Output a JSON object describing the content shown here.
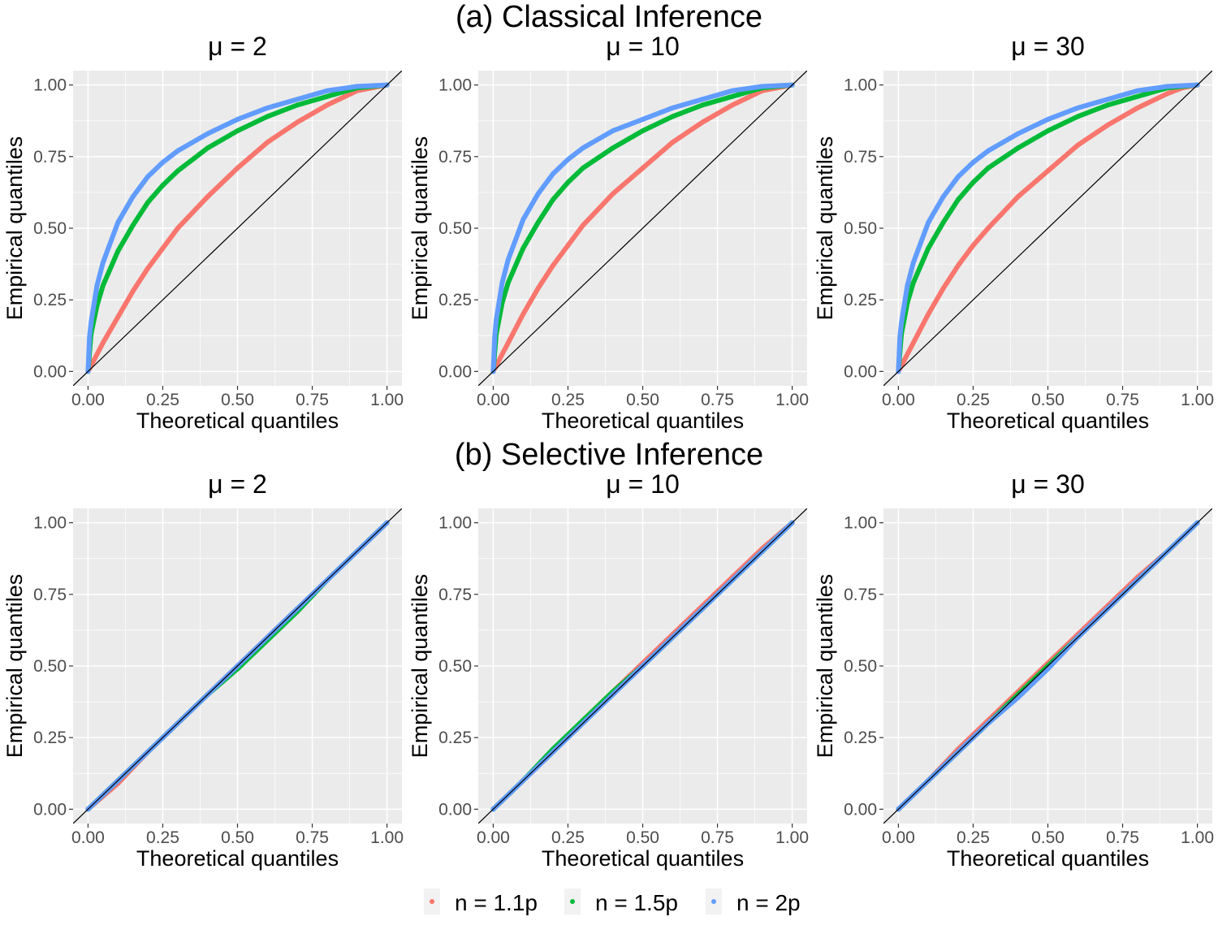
{
  "figure": {
    "row_titles": [
      "(a) Classical Inference",
      "(b) Selective Inference"
    ]
  },
  "chart_data": [
    {
      "type": "scatter",
      "row": 0,
      "col": 0,
      "title": "μ = 2",
      "xlabel": "Theoretical quantiles",
      "ylabel": "Empirical quantiles",
      "xlim": [
        -0.05,
        1.05
      ],
      "ylim": [
        -0.05,
        1.05
      ],
      "xticks": [
        "0.00",
        "0.25",
        "0.50",
        "0.75",
        "1.00"
      ],
      "yticks": [
        "0.00",
        "0.25",
        "0.50",
        "0.75",
        "1.00"
      ],
      "reference_line": "y = x",
      "series": [
        {
          "name": "n = 1.1p",
          "color": "#F8766D",
          "x": [
            0,
            0.05,
            0.1,
            0.15,
            0.2,
            0.25,
            0.3,
            0.4,
            0.5,
            0.6,
            0.7,
            0.8,
            0.9,
            0.95,
            1
          ],
          "y": [
            0,
            0.1,
            0.19,
            0.28,
            0.36,
            0.43,
            0.5,
            0.61,
            0.71,
            0.8,
            0.87,
            0.93,
            0.98,
            0.99,
            1
          ]
        },
        {
          "name": "n = 1.5p",
          "color": "#00BA38",
          "x": [
            0,
            0.01,
            0.03,
            0.05,
            0.1,
            0.15,
            0.2,
            0.25,
            0.3,
            0.4,
            0.5,
            0.6,
            0.7,
            0.8,
            0.9,
            1
          ],
          "y": [
            0,
            0.13,
            0.23,
            0.3,
            0.42,
            0.51,
            0.59,
            0.65,
            0.7,
            0.78,
            0.84,
            0.89,
            0.93,
            0.96,
            0.99,
            1
          ]
        },
        {
          "name": "n = 2p",
          "color": "#619CFF",
          "x": [
            0,
            0.005,
            0.01,
            0.03,
            0.05,
            0.1,
            0.15,
            0.2,
            0.25,
            0.3,
            0.4,
            0.5,
            0.6,
            0.7,
            0.8,
            0.9,
            1
          ],
          "y": [
            0,
            0.12,
            0.17,
            0.3,
            0.38,
            0.52,
            0.61,
            0.68,
            0.73,
            0.77,
            0.83,
            0.88,
            0.92,
            0.95,
            0.98,
            0.995,
            1
          ]
        }
      ]
    },
    {
      "type": "scatter",
      "row": 0,
      "col": 1,
      "title": "μ = 10",
      "xlabel": "Theoretical quantiles",
      "ylabel": "Empirical quantiles",
      "xlim": [
        -0.05,
        1.05
      ],
      "ylim": [
        -0.05,
        1.05
      ],
      "xticks": [
        "0.00",
        "0.25",
        "0.50",
        "0.75",
        "1.00"
      ],
      "yticks": [
        "0.00",
        "0.25",
        "0.50",
        "0.75",
        "1.00"
      ],
      "reference_line": "y = x",
      "series": [
        {
          "name": "n = 1.1p",
          "color": "#F8766D",
          "x": [
            0,
            0.05,
            0.1,
            0.15,
            0.2,
            0.25,
            0.3,
            0.4,
            0.5,
            0.6,
            0.7,
            0.8,
            0.9,
            0.95,
            1
          ],
          "y": [
            0,
            0.1,
            0.2,
            0.29,
            0.37,
            0.44,
            0.51,
            0.62,
            0.71,
            0.8,
            0.87,
            0.93,
            0.98,
            0.99,
            1
          ]
        },
        {
          "name": "n = 1.5p",
          "color": "#00BA38",
          "x": [
            0,
            0.01,
            0.03,
            0.05,
            0.1,
            0.15,
            0.2,
            0.25,
            0.3,
            0.4,
            0.5,
            0.6,
            0.7,
            0.8,
            0.9,
            1
          ],
          "y": [
            0,
            0.13,
            0.24,
            0.31,
            0.43,
            0.52,
            0.6,
            0.66,
            0.71,
            0.78,
            0.84,
            0.89,
            0.93,
            0.96,
            0.99,
            1
          ]
        },
        {
          "name": "n = 2p",
          "color": "#619CFF",
          "x": [
            0,
            0.005,
            0.01,
            0.03,
            0.05,
            0.1,
            0.15,
            0.2,
            0.25,
            0.3,
            0.4,
            0.5,
            0.6,
            0.7,
            0.8,
            0.9,
            1
          ],
          "y": [
            0,
            0.12,
            0.18,
            0.31,
            0.39,
            0.53,
            0.62,
            0.69,
            0.74,
            0.78,
            0.84,
            0.88,
            0.92,
            0.95,
            0.98,
            0.995,
            1
          ]
        }
      ]
    },
    {
      "type": "scatter",
      "row": 0,
      "col": 2,
      "title": "μ = 30",
      "xlabel": "Theoretical quantiles",
      "ylabel": "Empirical quantiles",
      "xlim": [
        -0.05,
        1.05
      ],
      "ylim": [
        -0.05,
        1.05
      ],
      "xticks": [
        "0.00",
        "0.25",
        "0.50",
        "0.75",
        "1.00"
      ],
      "yticks": [
        "0.00",
        "0.25",
        "0.50",
        "0.75",
        "1.00"
      ],
      "reference_line": "y = x",
      "series": [
        {
          "name": "n = 1.1p",
          "color": "#F8766D",
          "x": [
            0,
            0.05,
            0.1,
            0.15,
            0.2,
            0.25,
            0.3,
            0.4,
            0.5,
            0.6,
            0.7,
            0.8,
            0.9,
            0.95,
            1
          ],
          "y": [
            0,
            0.1,
            0.2,
            0.29,
            0.37,
            0.44,
            0.5,
            0.61,
            0.7,
            0.79,
            0.86,
            0.92,
            0.97,
            0.99,
            1
          ]
        },
        {
          "name": "n = 1.5p",
          "color": "#00BA38",
          "x": [
            0,
            0.01,
            0.03,
            0.05,
            0.1,
            0.15,
            0.2,
            0.25,
            0.3,
            0.4,
            0.5,
            0.6,
            0.7,
            0.8,
            0.9,
            1
          ],
          "y": [
            0,
            0.13,
            0.24,
            0.31,
            0.43,
            0.52,
            0.6,
            0.66,
            0.71,
            0.78,
            0.84,
            0.89,
            0.93,
            0.96,
            0.99,
            1
          ]
        },
        {
          "name": "n = 2p",
          "color": "#619CFF",
          "x": [
            0,
            0.005,
            0.01,
            0.03,
            0.05,
            0.1,
            0.15,
            0.2,
            0.25,
            0.3,
            0.4,
            0.5,
            0.6,
            0.7,
            0.8,
            0.9,
            1
          ],
          "y": [
            0,
            0.12,
            0.17,
            0.3,
            0.38,
            0.52,
            0.61,
            0.68,
            0.73,
            0.77,
            0.83,
            0.88,
            0.92,
            0.95,
            0.98,
            0.995,
            1
          ]
        }
      ]
    },
    {
      "type": "scatter",
      "row": 1,
      "col": 0,
      "title": "μ = 2",
      "xlabel": "Theoretical quantiles",
      "ylabel": "Empirical quantiles",
      "xlim": [
        -0.05,
        1.05
      ],
      "ylim": [
        -0.05,
        1.05
      ],
      "xticks": [
        "0.00",
        "0.25",
        "0.50",
        "0.75",
        "1.00"
      ],
      "yticks": [
        "0.00",
        "0.25",
        "0.50",
        "0.75",
        "1.00"
      ],
      "reference_line": "y = x",
      "series": [
        {
          "name": "n = 1.1p",
          "color": "#F8766D",
          "x": [
            0,
            0.1,
            0.2,
            0.3,
            0.4,
            0.5,
            0.6,
            0.7,
            0.8,
            0.9,
            1
          ],
          "y": [
            0,
            0.09,
            0.2,
            0.3,
            0.4,
            0.5,
            0.6,
            0.7,
            0.8,
            0.9,
            1
          ]
        },
        {
          "name": "n = 1.5p",
          "color": "#00BA38",
          "x": [
            0,
            0.1,
            0.2,
            0.3,
            0.4,
            0.5,
            0.6,
            0.7,
            0.8,
            0.9,
            1
          ],
          "y": [
            0,
            0.1,
            0.2,
            0.3,
            0.4,
            0.49,
            0.59,
            0.69,
            0.8,
            0.9,
            1
          ]
        },
        {
          "name": "n = 2p",
          "color": "#619CFF",
          "x": [
            0,
            0.1,
            0.2,
            0.3,
            0.4,
            0.5,
            0.6,
            0.7,
            0.8,
            0.9,
            1
          ],
          "y": [
            0,
            0.1,
            0.2,
            0.3,
            0.4,
            0.5,
            0.6,
            0.7,
            0.8,
            0.9,
            1
          ]
        }
      ]
    },
    {
      "type": "scatter",
      "row": 1,
      "col": 1,
      "title": "μ = 10",
      "xlabel": "Theoretical quantiles",
      "ylabel": "Empirical quantiles",
      "xlim": [
        -0.05,
        1.05
      ],
      "ylim": [
        -0.05,
        1.05
      ],
      "xticks": [
        "0.00",
        "0.25",
        "0.50",
        "0.75",
        "1.00"
      ],
      "yticks": [
        "0.00",
        "0.25",
        "0.50",
        "0.75",
        "1.00"
      ],
      "reference_line": "y = x",
      "series": [
        {
          "name": "n = 1.1p",
          "color": "#F8766D",
          "x": [
            0,
            0.1,
            0.2,
            0.3,
            0.4,
            0.5,
            0.6,
            0.7,
            0.8,
            0.9,
            1
          ],
          "y": [
            0,
            0.1,
            0.2,
            0.31,
            0.41,
            0.51,
            0.61,
            0.71,
            0.81,
            0.91,
            1
          ]
        },
        {
          "name": "n = 1.5p",
          "color": "#00BA38",
          "x": [
            0,
            0.1,
            0.2,
            0.3,
            0.4,
            0.5,
            0.6,
            0.7,
            0.8,
            0.9,
            1
          ],
          "y": [
            0,
            0.1,
            0.21,
            0.31,
            0.41,
            0.5,
            0.6,
            0.7,
            0.8,
            0.9,
            1
          ]
        },
        {
          "name": "n = 2p",
          "color": "#619CFF",
          "x": [
            0,
            0.1,
            0.2,
            0.3,
            0.4,
            0.5,
            0.6,
            0.7,
            0.8,
            0.9,
            1
          ],
          "y": [
            0,
            0.1,
            0.2,
            0.3,
            0.4,
            0.5,
            0.6,
            0.7,
            0.8,
            0.9,
            1
          ]
        }
      ]
    },
    {
      "type": "scatter",
      "row": 1,
      "col": 2,
      "title": "μ = 30",
      "xlabel": "Theoretical quantiles",
      "ylabel": "Empirical quantiles",
      "xlim": [
        -0.05,
        1.05
      ],
      "ylim": [
        -0.05,
        1.05
      ],
      "xticks": [
        "0.00",
        "0.25",
        "0.50",
        "0.75",
        "1.00"
      ],
      "yticks": [
        "0.00",
        "0.25",
        "0.50",
        "0.75",
        "1.00"
      ],
      "reference_line": "y = x",
      "series": [
        {
          "name": "n = 1.1p",
          "color": "#F8766D",
          "x": [
            0,
            0.1,
            0.2,
            0.3,
            0.4,
            0.5,
            0.6,
            0.7,
            0.8,
            0.9,
            1
          ],
          "y": [
            0,
            0.1,
            0.21,
            0.31,
            0.41,
            0.51,
            0.61,
            0.71,
            0.81,
            0.9,
            1
          ]
        },
        {
          "name": "n = 1.5p",
          "color": "#00BA38",
          "x": [
            0,
            0.1,
            0.2,
            0.3,
            0.4,
            0.5,
            0.6,
            0.7,
            0.8,
            0.9,
            1
          ],
          "y": [
            0,
            0.1,
            0.2,
            0.3,
            0.4,
            0.5,
            0.6,
            0.7,
            0.8,
            0.9,
            1
          ]
        },
        {
          "name": "n = 2p",
          "color": "#619CFF",
          "x": [
            0,
            0.1,
            0.2,
            0.3,
            0.4,
            0.5,
            0.6,
            0.7,
            0.8,
            0.9,
            1
          ],
          "y": [
            0,
            0.1,
            0.2,
            0.3,
            0.39,
            0.49,
            0.6,
            0.7,
            0.8,
            0.9,
            1
          ]
        }
      ]
    }
  ],
  "legend": {
    "placement": "bottom",
    "items": [
      {
        "label": "n = 1.1p",
        "color": "#F8766D"
      },
      {
        "label": "n = 1.5p",
        "color": "#00BA38"
      },
      {
        "label": "n = 2p",
        "color": "#619CFF"
      }
    ]
  }
}
